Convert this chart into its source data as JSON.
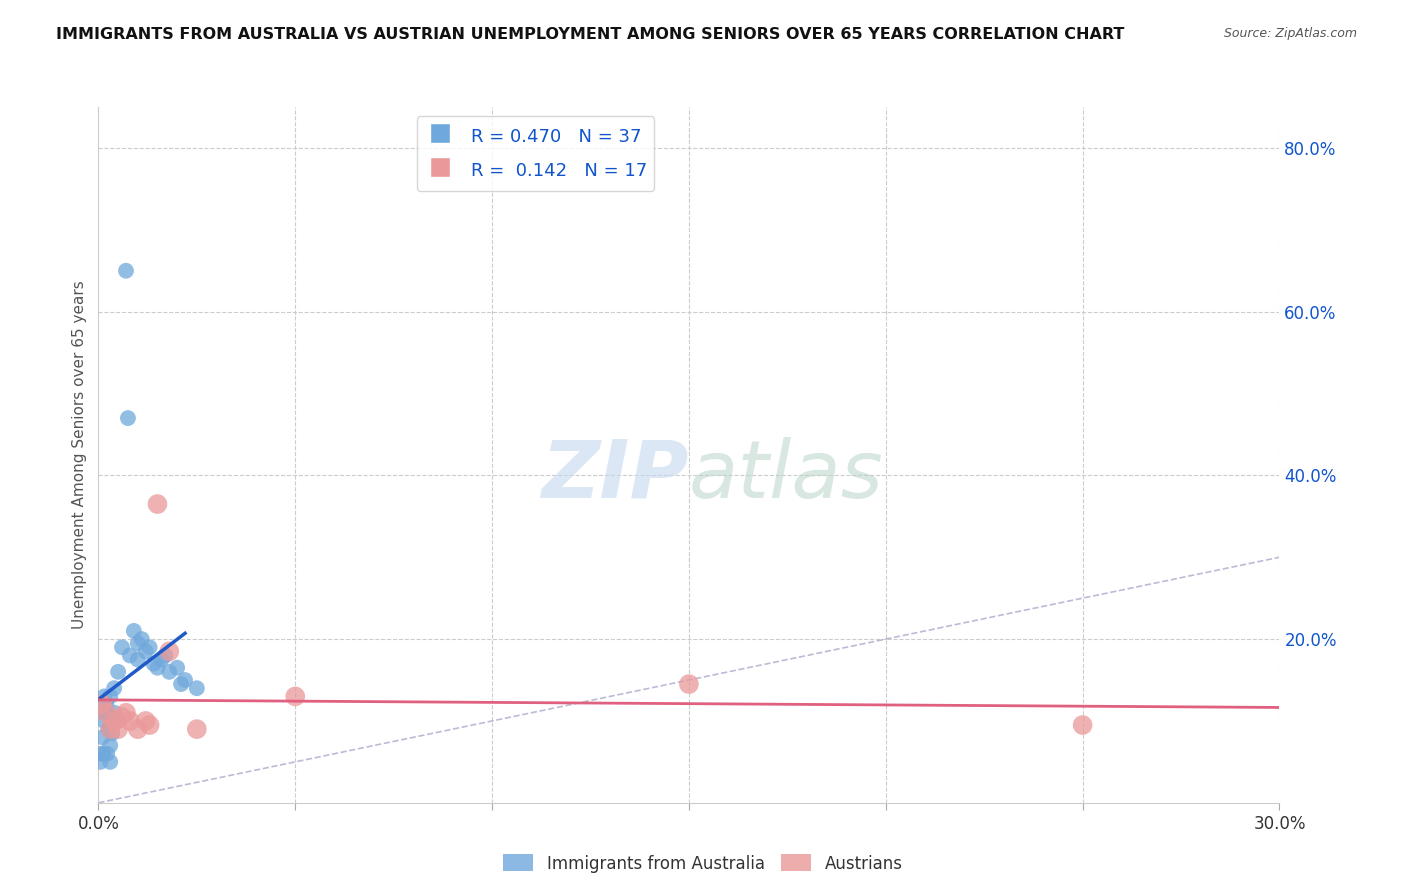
{
  "title": "IMMIGRANTS FROM AUSTRALIA VS AUSTRIAN UNEMPLOYMENT AMONG SENIORS OVER 65 YEARS CORRELATION CHART",
  "source": "Source: ZipAtlas.com",
  "ylabel": "Unemployment Among Seniors over 65 years",
  "xlim": [
    0.0,
    0.3
  ],
  "ylim": [
    0.0,
    0.85
  ],
  "blue_color": "#6fa8dc",
  "pink_color": "#ea9999",
  "blue_line_color": "#1f5ac8",
  "pink_line_color": "#e06080",
  "legend_text_color": "#1155cc",
  "R_blue": 0.47,
  "N_blue": 37,
  "R_pink": 0.142,
  "N_pink": 17,
  "blue_x": [
    0.0005,
    0.0008,
    0.001,
    0.0012,
    0.0015,
    0.0015,
    0.0018,
    0.002,
    0.0022,
    0.0025,
    0.003,
    0.003,
    0.003,
    0.0035,
    0.004,
    0.004,
    0.005,
    0.005,
    0.006,
    0.007,
    0.0075,
    0.008,
    0.009,
    0.01,
    0.01,
    0.011,
    0.012,
    0.013,
    0.014,
    0.015,
    0.016,
    0.017,
    0.018,
    0.02,
    0.021,
    0.022,
    0.025
  ],
  "blue_y": [
    0.05,
    0.06,
    0.08,
    0.06,
    0.1,
    0.13,
    0.11,
    0.12,
    0.06,
    0.09,
    0.13,
    0.07,
    0.05,
    0.085,
    0.11,
    0.14,
    0.16,
    0.1,
    0.19,
    0.65,
    0.47,
    0.18,
    0.21,
    0.195,
    0.175,
    0.2,
    0.185,
    0.19,
    0.17,
    0.165,
    0.175,
    0.18,
    0.16,
    0.165,
    0.145,
    0.15,
    0.14
  ],
  "pink_x": [
    0.001,
    0.002,
    0.003,
    0.004,
    0.005,
    0.006,
    0.007,
    0.008,
    0.01,
    0.012,
    0.013,
    0.015,
    0.018,
    0.025,
    0.05,
    0.15,
    0.25
  ],
  "pink_y": [
    0.12,
    0.11,
    0.09,
    0.1,
    0.09,
    0.105,
    0.11,
    0.1,
    0.09,
    0.1,
    0.095,
    0.365,
    0.185,
    0.09,
    0.13,
    0.145,
    0.095
  ],
  "background_color": "#ffffff",
  "grid_color": "#cccccc"
}
